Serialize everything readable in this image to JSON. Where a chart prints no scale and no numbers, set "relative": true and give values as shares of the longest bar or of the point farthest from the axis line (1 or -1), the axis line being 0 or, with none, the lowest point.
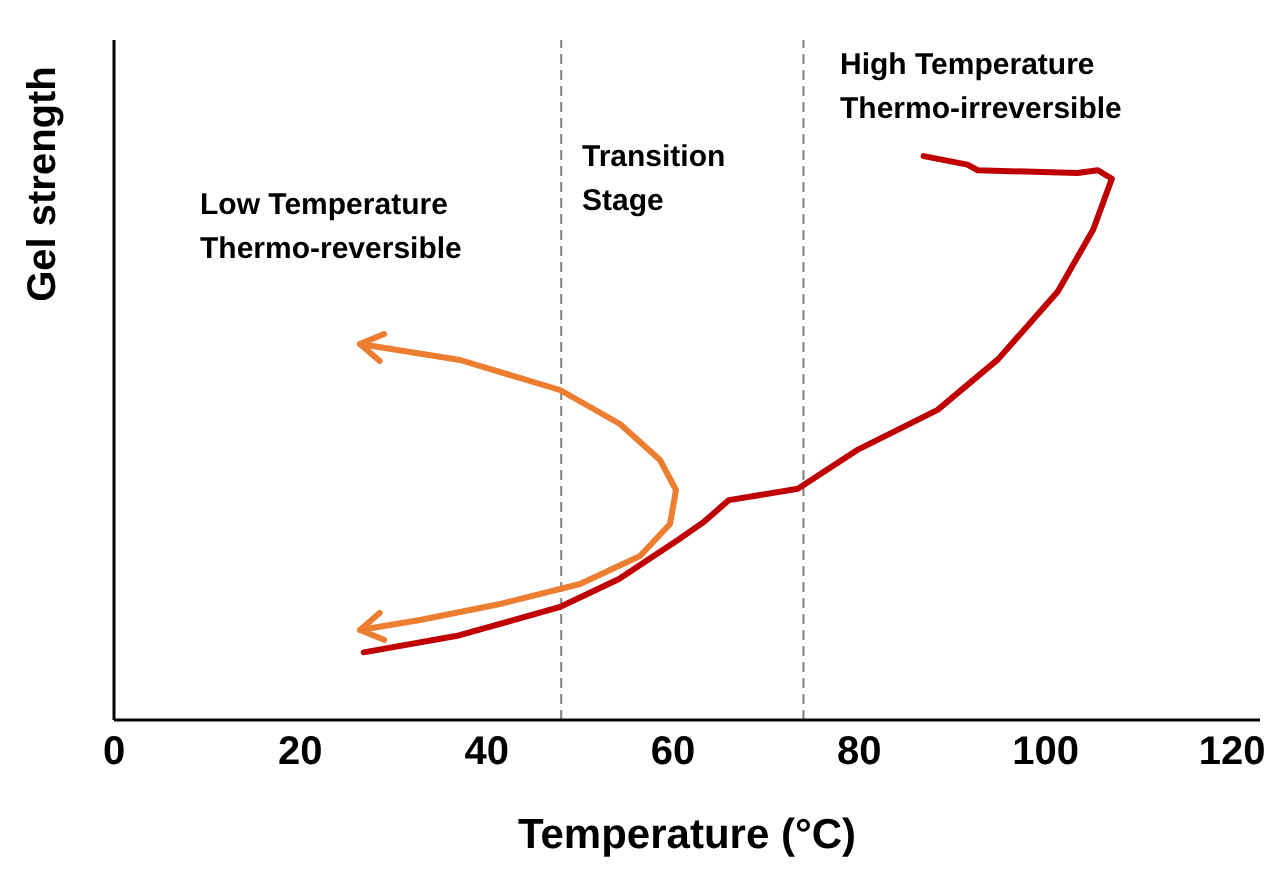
{
  "chart_data": {
    "type": "line",
    "relative": true,
    "xlabel": "Temperature (°C)",
    "ylabel": "Gel strength",
    "xlim": [
      0,
      123
    ],
    "xticks": [
      0,
      20,
      40,
      60,
      80,
      100,
      120
    ],
    "marker": "none",
    "line_style": "solid",
    "series": [
      {
        "color": "#c00000",
        "x": [
          26.8,
          37.0,
          47.8,
          54.2,
          60.6,
          63.2,
          66.0,
          73.4,
          79.9,
          88.4,
          94.9,
          101.3,
          105.1,
          107.1,
          105.6,
          103.4,
          92.7,
          91.6,
          86.9
        ],
        "values": [
          0.12,
          0.15,
          0.2,
          0.25,
          0.32,
          0.35,
          0.39,
          0.41,
          0.48,
          0.55,
          0.64,
          0.76,
          0.87,
          0.96,
          0.975,
          0.97,
          0.975,
          0.985,
          1.0
        ]
      }
    ],
    "ref_lines": [
      {
        "axis": "x",
        "value": 48,
        "color": "#808080",
        "line_style": "dashed"
      },
      {
        "axis": "x",
        "value": 74,
        "color": "#808080",
        "line_style": "dashed"
      }
    ],
    "annotations": [
      "Low Temperature\nThermo-reversible",
      "Transition\nStage",
      "High Temperature\nThermo-irreversible"
    ]
  }
}
